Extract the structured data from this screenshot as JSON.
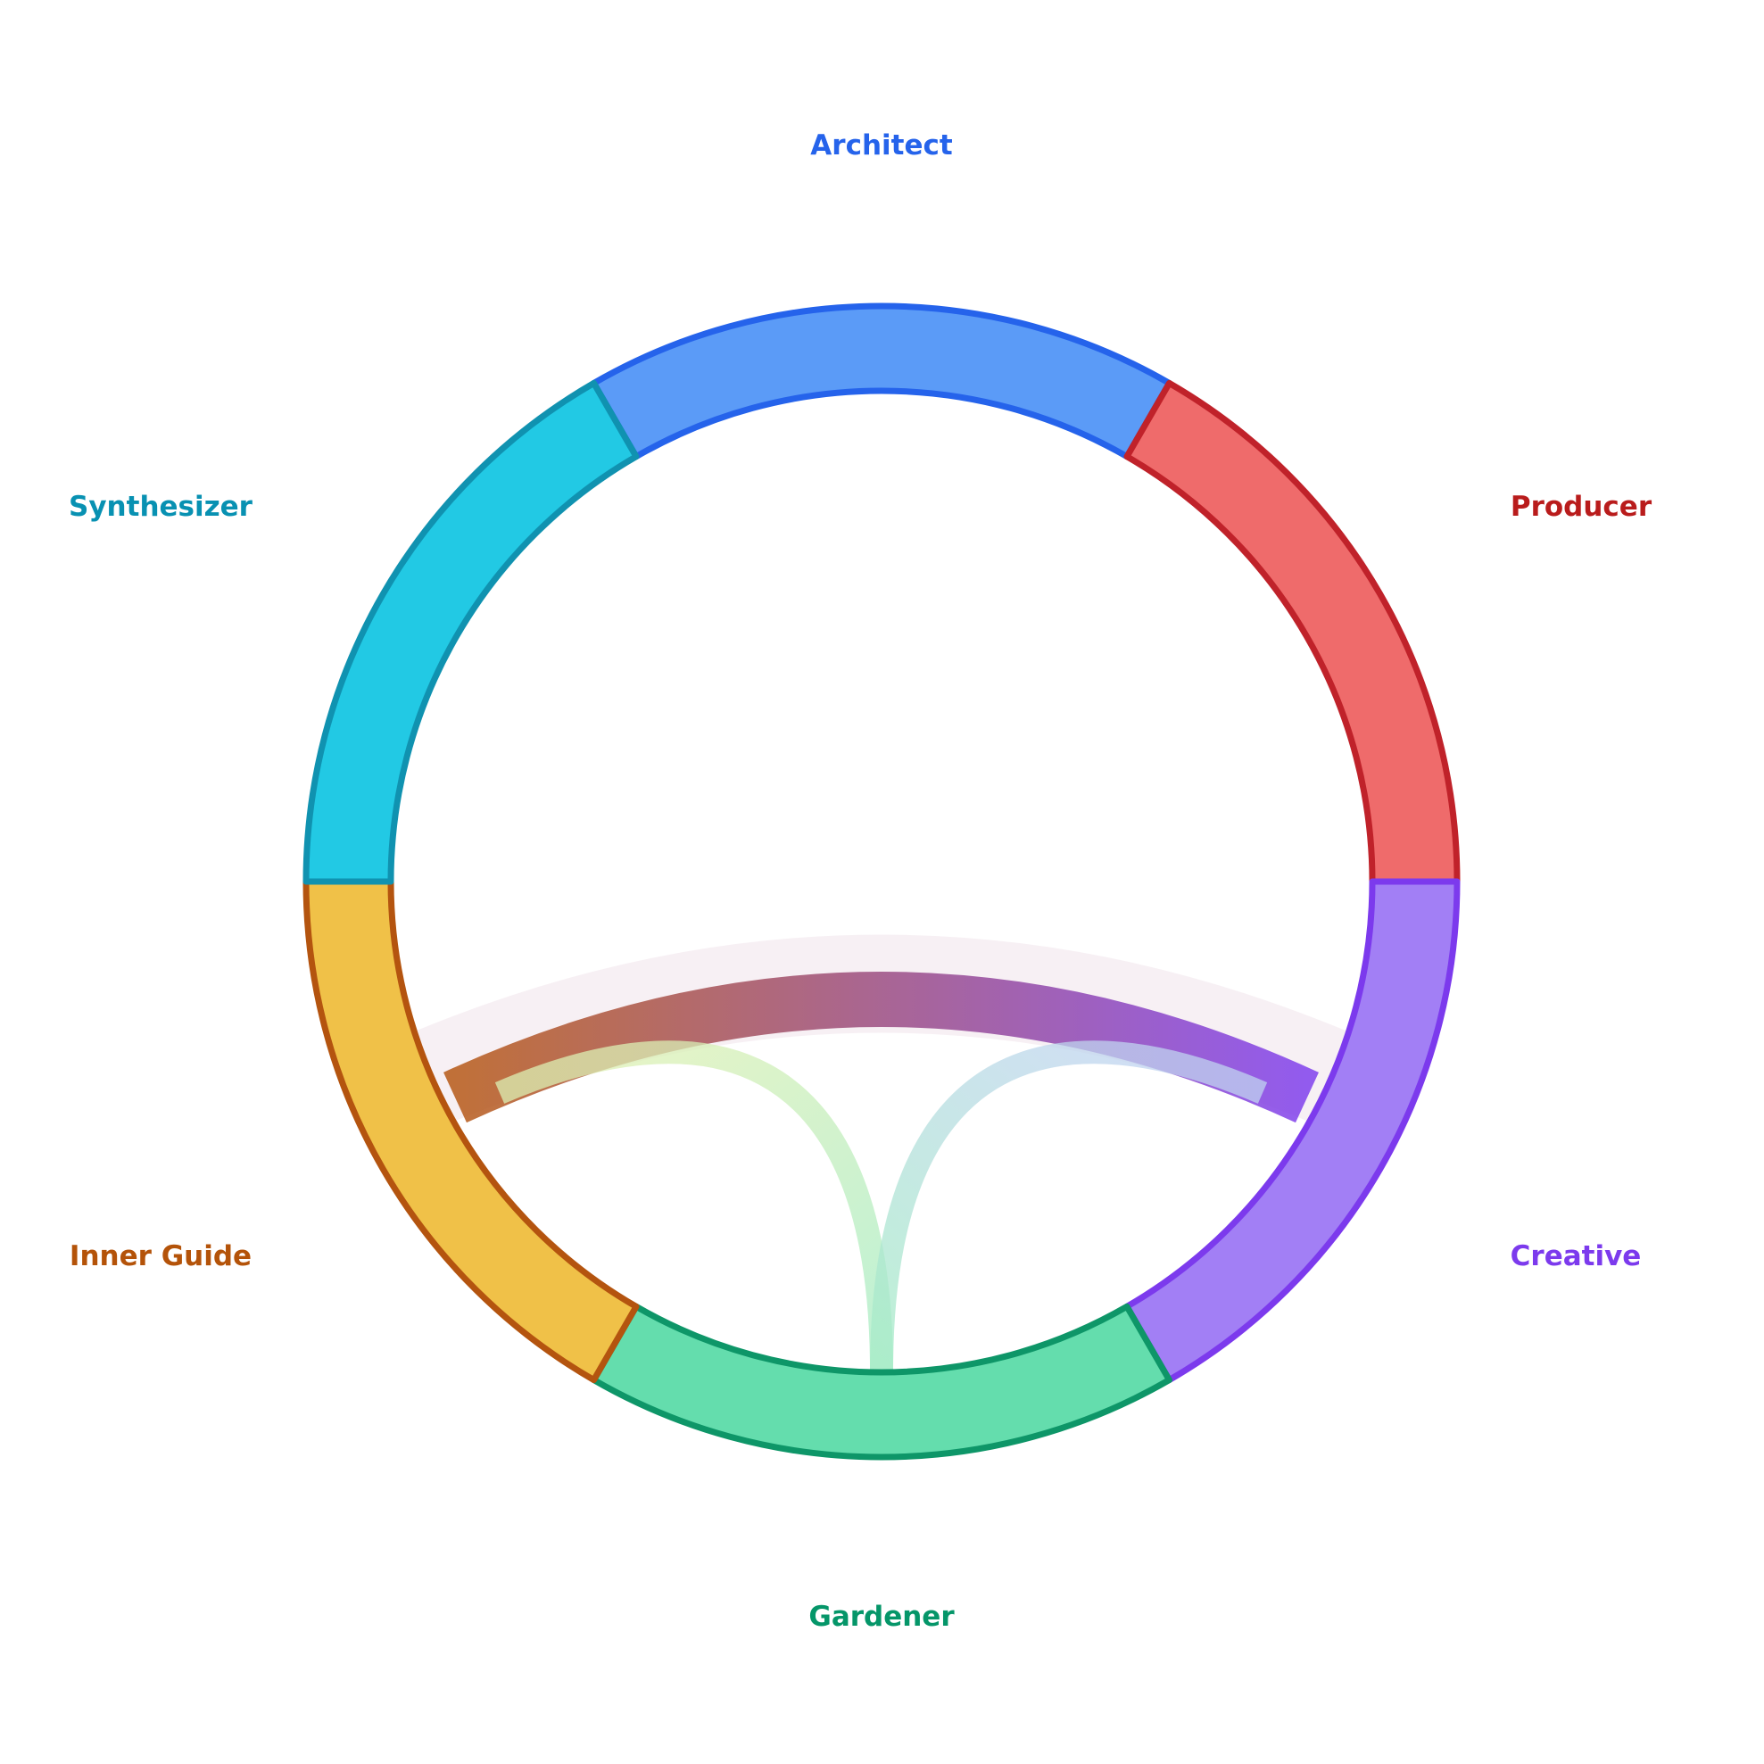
{
  "diagram": {
    "type": "chord",
    "segments": [
      {
        "id": "architect",
        "label": "Architect",
        "fill": "#5b9bf7",
        "stroke": "#2563eb",
        "label_color": "#2563eb"
      },
      {
        "id": "producer",
        "label": "Producer",
        "fill": "#ef6b6b",
        "stroke": "#c0222a",
        "label_color": "#b91c1c"
      },
      {
        "id": "creative",
        "label": "Creative",
        "fill": "#a27ff5",
        "stroke": "#7c3aed",
        "label_color": "#7c3aed"
      },
      {
        "id": "gardener",
        "label": "Gardener",
        "fill": "#64ddad",
        "stroke": "#0e9668",
        "label_color": "#059669"
      },
      {
        "id": "inner-guide",
        "label": "Inner Guide",
        "fill": "#f0c148",
        "stroke": "#b4540f",
        "label_color": "#b45309"
      },
      {
        "id": "synthesizer",
        "label": "Synthesizer",
        "fill": "#22c9e4",
        "stroke": "#1092b0",
        "label_color": "#0891b2"
      }
    ],
    "connections": [
      {
        "from": "inner-guide",
        "to": "creative",
        "strength": "strong",
        "color_from": "#b4540f",
        "color_to": "#7c3aed"
      },
      {
        "from": "inner-guide",
        "to": "gardener",
        "strength": "weak",
        "color_from": "#d9f0b0",
        "color_to": "#a8ecc8"
      },
      {
        "from": "creative",
        "to": "gardener",
        "strength": "weak",
        "color_from": "#c2d6f0",
        "color_to": "#a8ecc8"
      }
    ]
  }
}
